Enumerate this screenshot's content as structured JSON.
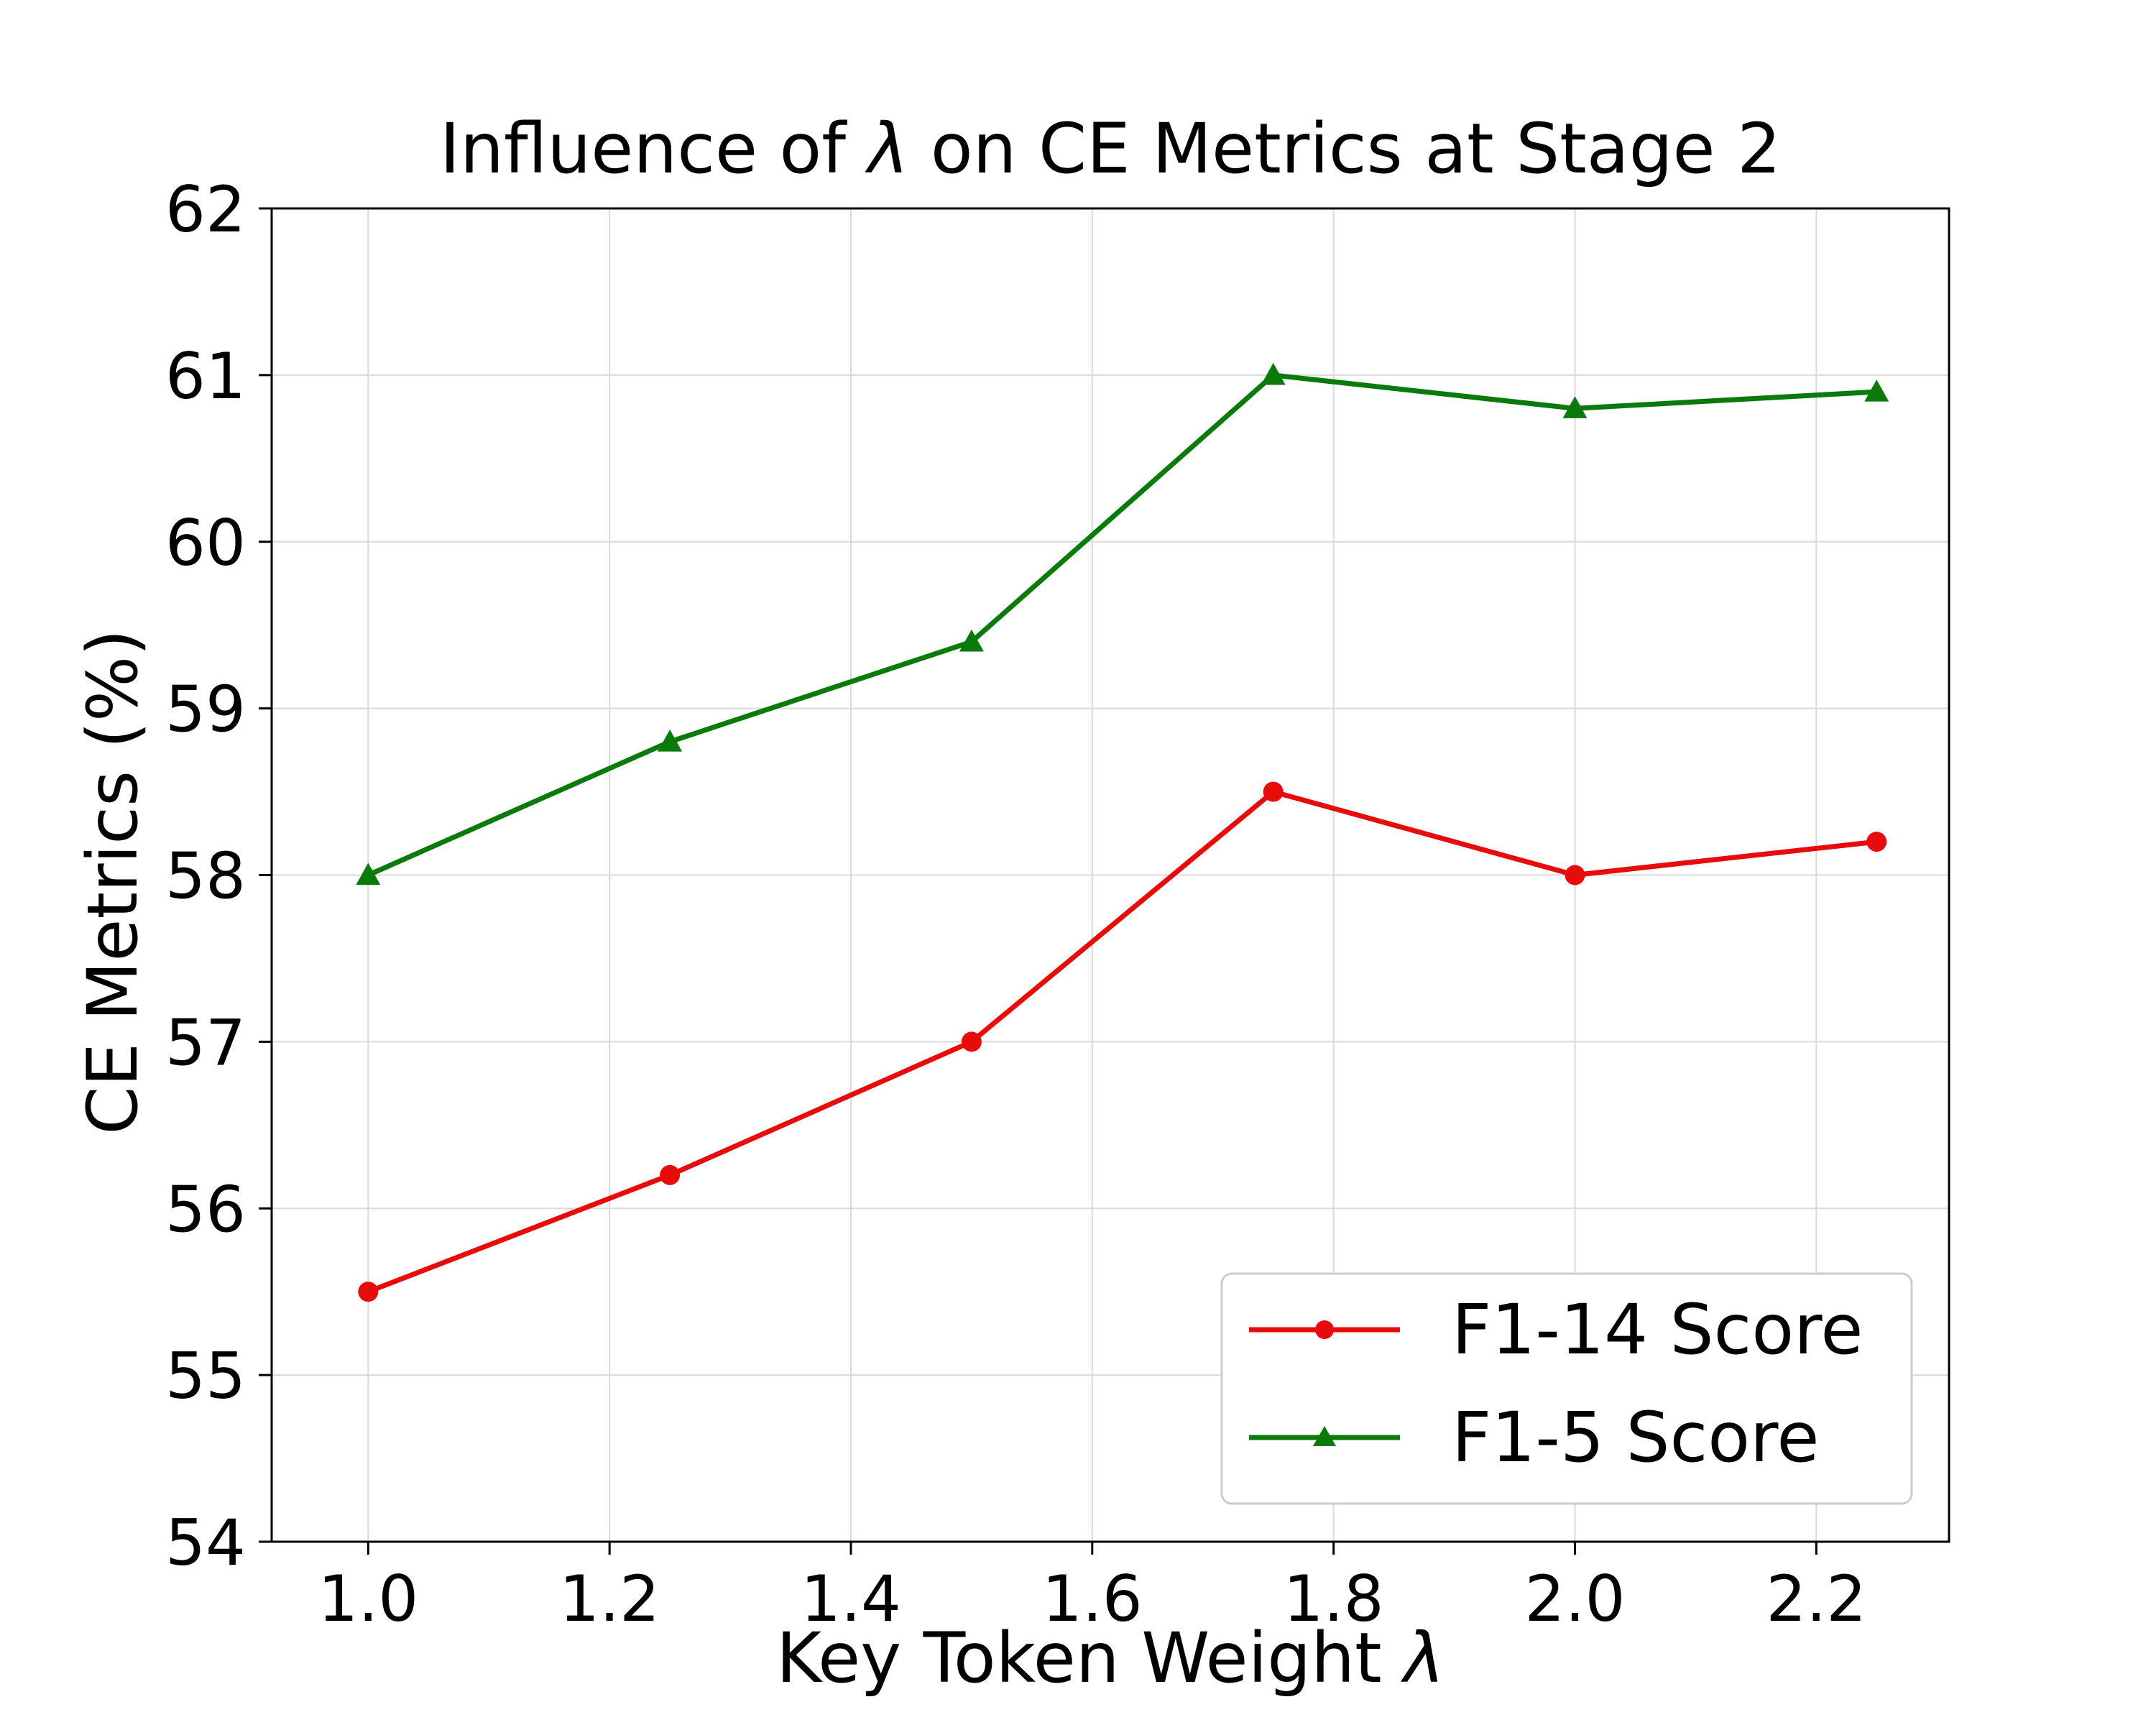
{
  "chart_data": {
    "type": "line",
    "title": "Influence of λ on CE Metrics at Stage 2",
    "title_prefix": "Influence of ",
    "title_symbol": "λ",
    "title_suffix": " on CE Metrics at Stage 2",
    "xlabel": "Key Token Weight λ",
    "xlabel_prefix": "Key Token Weight ",
    "xlabel_symbol": "λ",
    "ylabel": "CE Metrics (%)",
    "xlim": [
      0.92,
      2.31
    ],
    "ylim": [
      54,
      62
    ],
    "x_ticks": [
      1.0,
      1.2,
      1.4,
      1.6,
      1.8,
      2.0,
      2.2
    ],
    "x_tick_labels": [
      "1.0",
      "1.2",
      "1.4",
      "1.6",
      "1.8",
      "2.0",
      "2.2"
    ],
    "y_ticks": [
      54,
      55,
      56,
      57,
      58,
      59,
      60,
      61,
      62
    ],
    "y_tick_labels": [
      "54",
      "55",
      "56",
      "57",
      "58",
      "59",
      "60",
      "61",
      "62"
    ],
    "grid": true,
    "legend_position": "lower-right",
    "x": [
      1.0,
      1.25,
      1.5,
      1.75,
      2.0,
      2.25
    ],
    "series": [
      {
        "name": "F1-14 Score",
        "color": "#e80b0b",
        "marker": "circle",
        "values": [
          55.5,
          56.2,
          57.0,
          58.5,
          58.0,
          58.2
        ]
      },
      {
        "name": "F1-5 Score",
        "color": "#0a7a0a",
        "marker": "triangle",
        "values": [
          58.0,
          58.8,
          59.4,
          61.0,
          60.8,
          60.9
        ]
      }
    ]
  }
}
